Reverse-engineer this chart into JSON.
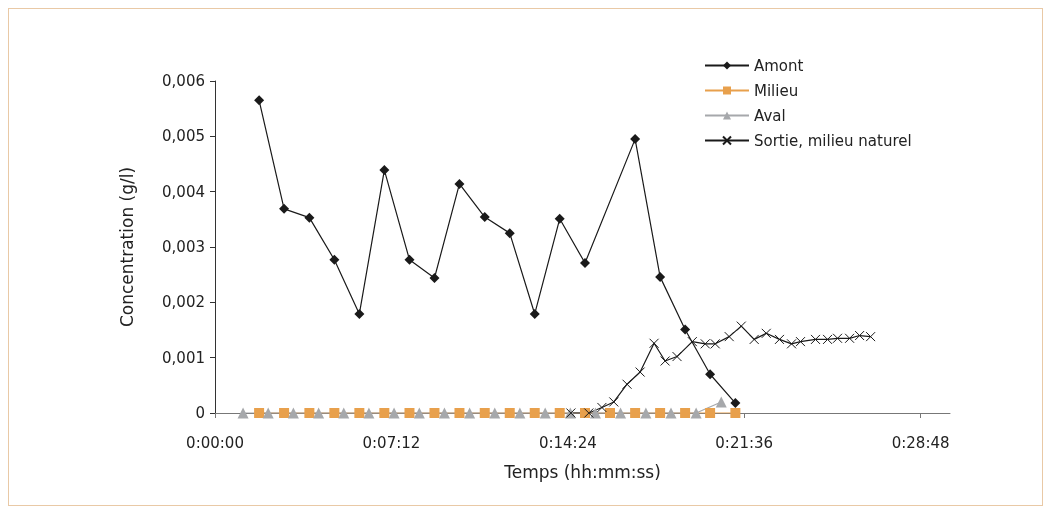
{
  "chart_data": {
    "type": "line",
    "xlabel": "Temps (hh:mm:ss)",
    "ylabel": "Concentration (g/l)",
    "xlim": [
      0,
      0.5
    ],
    "xticks": [
      {
        "value": 0,
        "label": "0:00:00"
      },
      {
        "value": 0.12,
        "label": "0:07:12"
      },
      {
        "value": 0.24,
        "label": "0:14:24"
      },
      {
        "value": 0.36,
        "label": "0:21:36"
      },
      {
        "value": 0.48,
        "label": "0:28:48"
      }
    ],
    "ylim": [
      0,
      0.006
    ],
    "yticks": [
      0,
      {
        "value": 0.001,
        "label": "0,001"
      },
      {
        "value": 0.002,
        "label": "0,002"
      },
      {
        "value": 0.003,
        "label": "0,003"
      },
      {
        "value": 0.004,
        "label": "0,004"
      },
      {
        "value": 0.005,
        "label": "0,005"
      },
      {
        "value": 0.006,
        "label": "0,006"
      }
    ],
    "grid": false,
    "legend": "top right",
    "series": [
      {
        "name": "Amont",
        "color": "#1a1a1a",
        "marker": "diamond",
        "x": [
          0.03,
          0.047,
          0.0642,
          0.0812,
          0.0982,
          0.1152,
          0.1323,
          0.1493,
          0.1663,
          0.1835,
          0.2005,
          0.2175,
          0.2345,
          0.2517,
          0.2858,
          0.3028,
          0.3198,
          0.3368,
          0.354
        ],
        "values": [
          0.00565,
          0.00369,
          0.00353,
          0.00277,
          0.00179,
          0.00439,
          0.00277,
          0.00244,
          0.00414,
          0.00354,
          0.00325,
          0.00179,
          0.00351,
          0.00271,
          0.00495,
          0.00246,
          0.00151,
          0.0007,
          0.00018
        ]
      },
      {
        "name": "Milieu",
        "color": "#e8a04c",
        "marker": "square",
        "x": [
          0.03,
          0.047,
          0.0642,
          0.0812,
          0.0982,
          0.1152,
          0.1323,
          0.1493,
          0.1663,
          0.1835,
          0.2005,
          0.2175,
          0.2345,
          0.2517,
          0.2687,
          0.2858,
          0.3028,
          0.3198,
          0.3368,
          0.354
        ],
        "values": [
          0,
          0,
          0,
          0,
          0,
          0,
          0,
          0,
          0,
          0,
          0,
          0,
          0,
          0,
          0,
          0,
          0,
          0,
          0,
          0
        ]
      },
      {
        "name": "Aval",
        "color": "#a6a8ab",
        "marker": "triangle",
        "x": [
          0.0191,
          0.0362,
          0.0533,
          0.0705,
          0.0876,
          0.1047,
          0.1218,
          0.139,
          0.1561,
          0.1732,
          0.1903,
          0.2074,
          0.2246,
          0.2417,
          0.2588,
          0.2759,
          0.2931,
          0.3102,
          0.3273,
          0.3444
        ],
        "values": [
          0,
          0,
          0,
          0,
          0,
          0,
          0,
          0,
          0,
          0,
          0,
          0,
          0,
          0,
          0,
          0,
          0,
          0,
          0,
          0.0002
        ]
      },
      {
        "name": "Sortie, milieu naturel",
        "color": "#1a1a1a",
        "marker": "cross",
        "x": [
          0.2421,
          0.2543,
          0.2632,
          0.2713,
          0.2803,
          0.2892,
          0.2987,
          0.3062,
          0.3143,
          0.3247,
          0.3335,
          0.3403,
          0.3498,
          0.358,
          0.3668,
          0.375,
          0.384,
          0.3922,
          0.3983,
          0.4085,
          0.4167,
          0.4235,
          0.4317,
          0.4385,
          0.446
        ],
        "values": [
          0,
          0,
          0.0001,
          0.0002,
          0.00052,
          0.00074,
          0.00126,
          0.00094,
          0.00102,
          0.00129,
          0.00125,
          0.00125,
          0.00138,
          0.00157,
          0.00133,
          0.00144,
          0.00133,
          0.00125,
          0.00129,
          0.00133,
          0.00133,
          0.00135,
          0.00135,
          0.0014,
          0.00138
        ]
      }
    ]
  }
}
